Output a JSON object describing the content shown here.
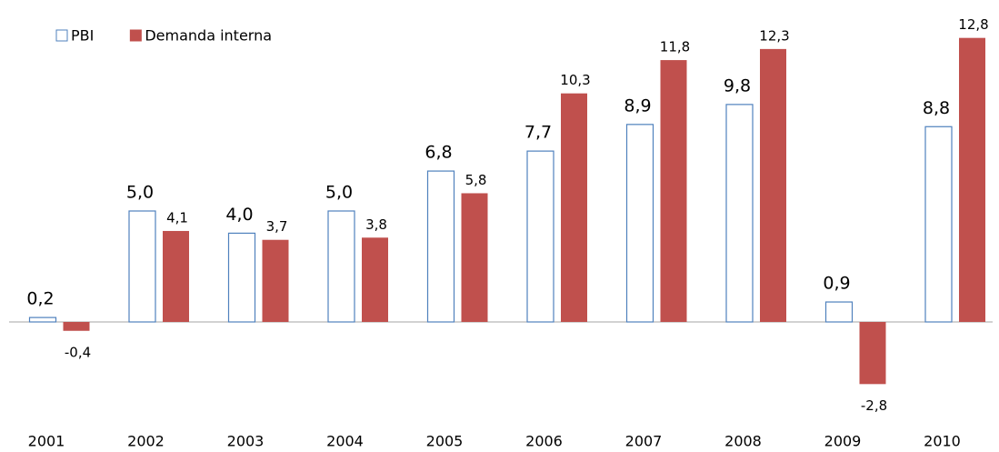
{
  "chart_data": {
    "type": "bar",
    "categories": [
      "2001",
      "2002",
      "2003",
      "2004",
      "2005",
      "2006",
      "2007",
      "2008",
      "2009",
      "2010"
    ],
    "series": [
      {
        "name": "PBI",
        "color": "#4f81bd",
        "fill": "#ffffff",
        "values": [
          0.2,
          5.0,
          4.0,
          5.0,
          6.8,
          7.7,
          8.9,
          9.8,
          0.9,
          8.8
        ],
        "value_labels": [
          "0,2",
          "5,0",
          "4,0",
          "5,0",
          "6,8",
          "7,7",
          "8,9",
          "9,8",
          "0,9",
          "8,8"
        ]
      },
      {
        "name": "Demanda interna",
        "color": "#c0504d",
        "fill": "#c0504d",
        "values": [
          -0.4,
          4.1,
          3.7,
          3.8,
          5.8,
          10.3,
          11.8,
          12.3,
          -2.8,
          12.8
        ],
        "value_labels": [
          "-0,4",
          "4,1",
          "3,7",
          "3,8",
          "5,8",
          "10,3",
          "11,8",
          "12,3",
          "-2,8",
          "12,8"
        ]
      }
    ],
    "legend": "top-left"
  }
}
